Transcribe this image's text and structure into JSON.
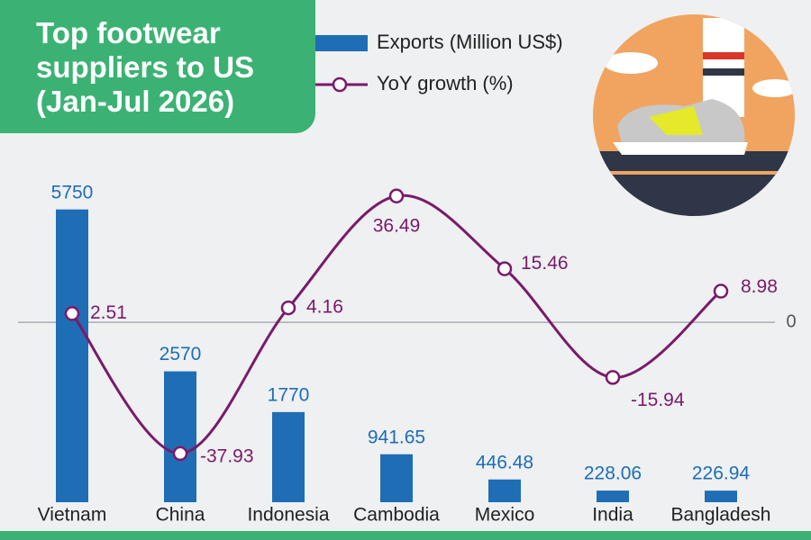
{
  "chart_data": {
    "type": "bar",
    "title": "Top footwear suppliers to US (Jan-Jul 2026)",
    "categories": [
      "Vietnam",
      "China",
      "Indonesia",
      "Cambodia",
      "Mexico",
      "India",
      "Bangladesh"
    ],
    "series": [
      {
        "name": "Exports (Million US$)",
        "type": "bar",
        "color": "#1f6db5",
        "values": [
          5750,
          2570,
          1770,
          941.65,
          446.48,
          228.06,
          226.94
        ]
      },
      {
        "name": "YoY growth (%)",
        "type": "line",
        "axis": "y2",
        "color": "#7a1a6b",
        "values": [
          2.51,
          -37.93,
          4.16,
          36.49,
          15.46,
          -15.94,
          8.98
        ]
      }
    ],
    "ylim": [
      0,
      7000
    ],
    "y2lim": [
      -52,
      51
    ],
    "y2ticks": [
      0
    ]
  }
}
